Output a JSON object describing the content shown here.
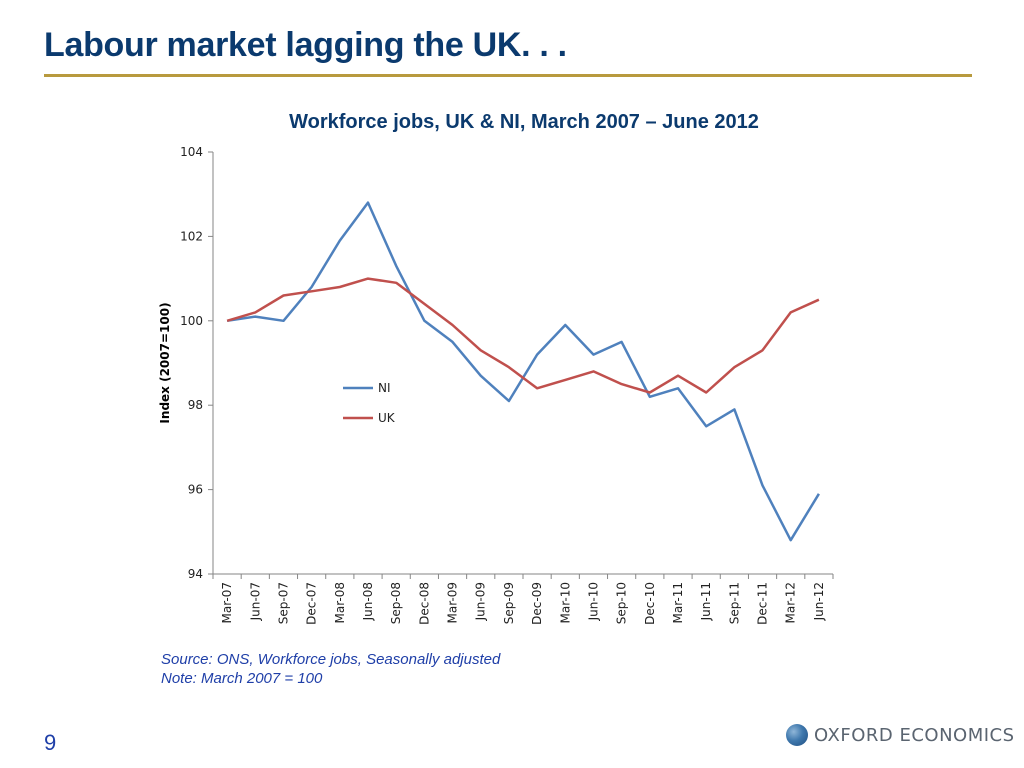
{
  "slide": {
    "title": "Labour market lagging the UK. . .",
    "page_number": "9",
    "source_line": "Source: ONS, Workforce jobs, Seasonally adjusted",
    "note_line": "Note: March 2007 = 100",
    "brand": "OXFORD ECONOMICS",
    "rule_color": "#b89a3e",
    "title_color": "#0b3a6e"
  },
  "chart_data": {
    "type": "line",
    "title": "Workforce jobs, UK & NI, March 2007 – June 2012",
    "xlabel": "",
    "ylabel": "Index (2007=100)",
    "ylim": [
      94,
      104
    ],
    "yticks": [
      "94",
      "96",
      "98",
      "100",
      "102",
      "104"
    ],
    "grid": false,
    "legend_position": "center",
    "categories": [
      "Mar-07",
      "Jun-07",
      "Sep-07",
      "Dec-07",
      "Mar-08",
      "Jun-08",
      "Sep-08",
      "Dec-08",
      "Mar-09",
      "Jun-09",
      "Sep-09",
      "Dec-09",
      "Mar-10",
      "Jun-10",
      "Sep-10",
      "Dec-10",
      "Mar-11",
      "Jun-11",
      "Sep-11",
      "Dec-11",
      "Mar-12",
      "Jun-12"
    ],
    "series": [
      {
        "name": "NI",
        "color": "#4f81bd",
        "values": [
          100.0,
          100.1,
          100.0,
          100.8,
          101.9,
          102.8,
          101.3,
          100.0,
          99.5,
          98.7,
          98.1,
          99.2,
          99.9,
          99.2,
          99.5,
          98.2,
          98.4,
          97.5,
          97.9,
          96.1,
          94.8,
          95.9
        ]
      },
      {
        "name": "UK",
        "color": "#c0504d",
        "values": [
          100.0,
          100.2,
          100.6,
          100.7,
          100.8,
          101.0,
          100.9,
          100.4,
          99.9,
          99.3,
          98.9,
          98.4,
          98.6,
          98.8,
          98.5,
          98.3,
          98.7,
          98.3,
          98.9,
          99.3,
          100.2,
          100.5
        ]
      }
    ]
  }
}
